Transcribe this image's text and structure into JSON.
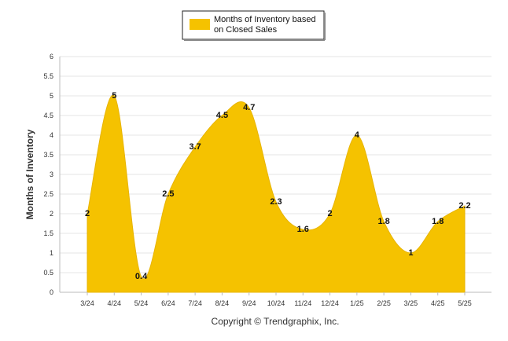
{
  "chart_data": {
    "type": "area",
    "categories": [
      "3/24",
      "4/24",
      "5/24",
      "6/24",
      "7/24",
      "8/24",
      "9/24",
      "10/24",
      "11/24",
      "12/24",
      "1/25",
      "2/25",
      "3/25",
      "4/25",
      "5/25"
    ],
    "series": [
      {
        "name": "Months of Inventory based on Closed Sales",
        "values": [
          2,
          5,
          0.4,
          2.5,
          3.7,
          4.5,
          4.7,
          2.3,
          1.6,
          2,
          4,
          1.8,
          1,
          1.8,
          2.2
        ],
        "color": "#F5C200"
      }
    ],
    "data_labels": [
      "2",
      "5",
      "0.4",
      "2.5",
      "3.7",
      "4.5",
      "4.7",
      "2.3",
      "1.6",
      "2",
      "4",
      "1.8",
      "1",
      "1.8",
      "2.2"
    ],
    "ylabel": "Months of Inventory",
    "xlabel": "",
    "ylim": [
      0,
      6
    ],
    "yticks": [
      "0",
      "0.5",
      "1",
      "1.5",
      "2",
      "2.5",
      "3",
      "3.5",
      "4",
      "4.5",
      "5",
      "5.5",
      "6"
    ],
    "grid": true,
    "legend_position": "top-center",
    "legend_lines": [
      "Months of Inventory based",
      "on Closed Sales"
    ],
    "footer": "Copyright © Trendgraphix, Inc."
  }
}
